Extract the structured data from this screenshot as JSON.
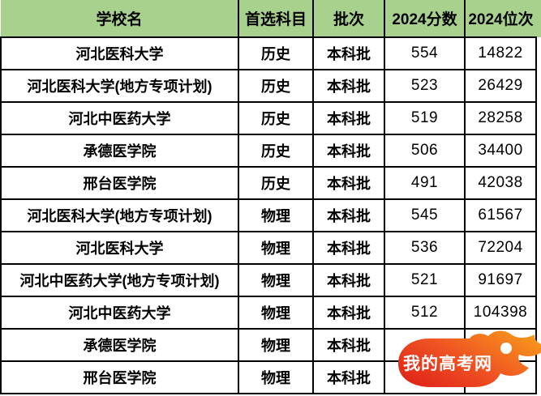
{
  "table": {
    "headers": [
      "学校名",
      "首选科目",
      "批次",
      "2024分数",
      "2024位次"
    ],
    "rows": [
      [
        "河北医科大学",
        "历史",
        "本科批",
        "554",
        "14822"
      ],
      [
        "河北医科大学(地方专项计划)",
        "历史",
        "本科批",
        "523",
        "26429"
      ],
      [
        "河北中医药大学",
        "历史",
        "本科批",
        "519",
        "28258"
      ],
      [
        "承德医学院",
        "历史",
        "本科批",
        "506",
        "34400"
      ],
      [
        "邢台医学院",
        "历史",
        "本科批",
        "491",
        "42038"
      ],
      [
        "河北医科大学(地方专项计划)",
        "物理",
        "本科批",
        "545",
        "61567"
      ],
      [
        "河北医科大学",
        "物理",
        "本科批",
        "536",
        "72204"
      ],
      [
        "河北中医药大学(地方专项计划)",
        "物理",
        "本科批",
        "521",
        "91697"
      ],
      [
        "河北中医药大学",
        "物理",
        "本科批",
        "512",
        "104398"
      ],
      [
        "承德医学院",
        "物理",
        "本科批",
        "",
        ""
      ],
      [
        "邢台医学院",
        "物理",
        "本科批",
        "",
        ""
      ]
    ]
  },
  "watermark": {
    "label": "我的高考网"
  },
  "colors": {
    "header_green": "#a9d18e",
    "border_black": "#000000",
    "flame_red": "#e02418",
    "flame_mid": "#ef5222",
    "flame_orange": "#f89c1c",
    "watermark_text": "#ffffff"
  }
}
